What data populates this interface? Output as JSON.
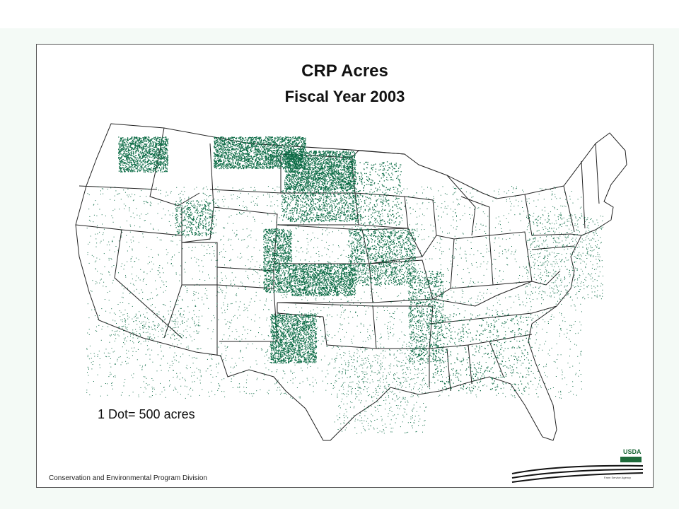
{
  "map": {
    "title": "CRP Acres",
    "subtitle": "Fiscal Year 2003",
    "legend": "1 Dot= 500 acres",
    "footer": "Conservation and Environmental Program Division",
    "logo_text": "USDA",
    "agency_text": "Farm Service Agency",
    "dot_color": "#0b6b45",
    "border_color": "#222222",
    "density_regions": [
      {
        "name": "Montana north",
        "density": 0.9
      },
      {
        "name": "North Dakota",
        "density": 0.95
      },
      {
        "name": "South Dakota",
        "density": 0.6
      },
      {
        "name": "Eastern Washington",
        "density": 0.85
      },
      {
        "name": "Eastern Colorado",
        "density": 0.8
      },
      {
        "name": "Western Kansas",
        "density": 0.85
      },
      {
        "name": "Texas Panhandle",
        "density": 0.9
      },
      {
        "name": "Iowa / Missouri",
        "density": 0.75
      },
      {
        "name": "Minnesota",
        "density": 0.5
      },
      {
        "name": "Mississippi Delta",
        "density": 0.7
      },
      {
        "name": "Southeast",
        "density": 0.35
      },
      {
        "name": "Idaho",
        "density": 0.6
      }
    ]
  }
}
